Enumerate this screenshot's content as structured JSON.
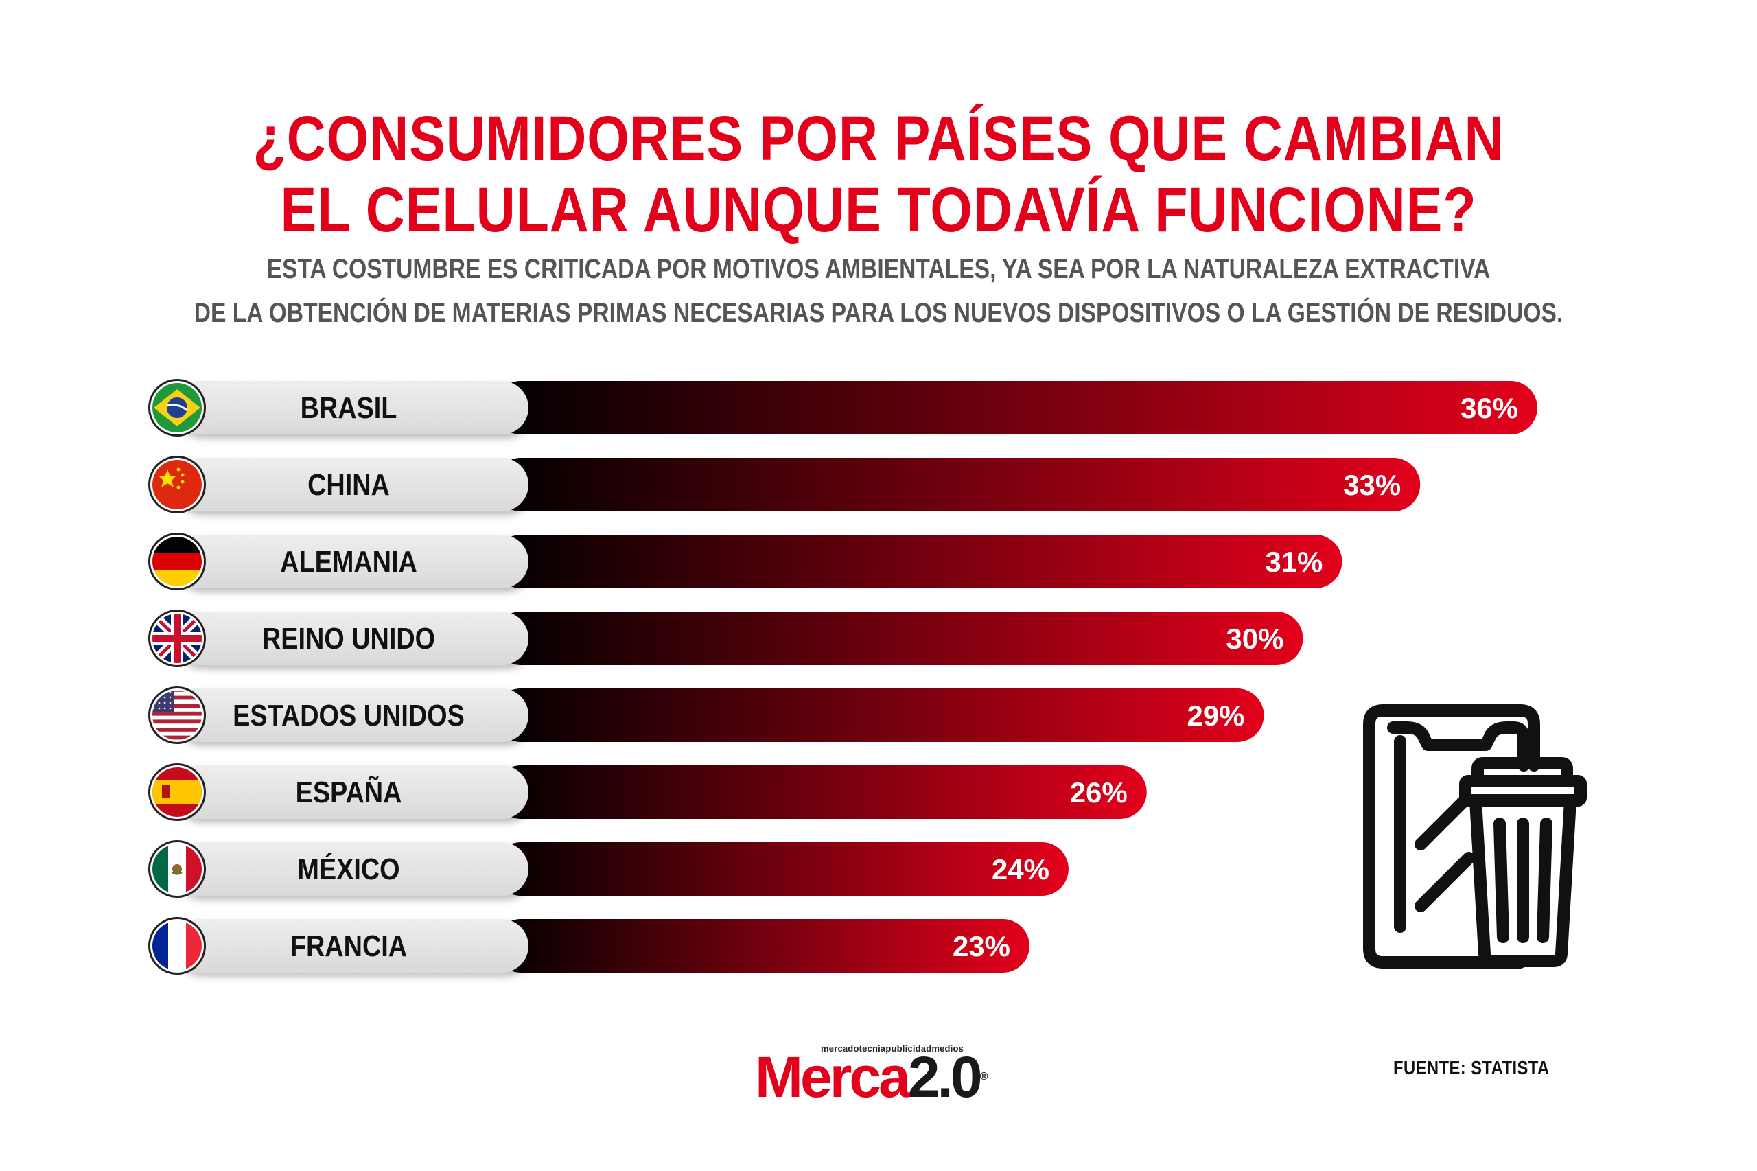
{
  "title": {
    "line1": "¿CONSUMIDORES POR PAÍSES QUE CAMBIAN",
    "line2": "EL CELULAR AUNQUE TODAVÍA FUNCIONE?"
  },
  "subtitle": {
    "line1": "ESTA COSTUMBRE ES CRITICADA POR MOTIVOS AMBIENTALES, YA SEA POR LA NATURALEZA EXTRACTIVA",
    "line2": "DE LA OBTENCIÓN DE MATERIAS PRIMAS NECESARIAS PARA LOS NUEVOS DISPOSITIVOS O LA GESTIÓN DE RESIDUOS."
  },
  "colors": {
    "accent": "#e3001b",
    "bar_start": "#000000",
    "bar_end": "#e3001b",
    "label_bg": "#e6e6e6"
  },
  "chart_data": {
    "type": "bar",
    "orientation": "horizontal",
    "unit": "%",
    "categories": [
      "BRASIL",
      "CHINA",
      "ALEMANIA",
      "REINO UNIDO",
      "ESTADOS UNIDOS",
      "ESPAÑA",
      "MÉXICO",
      "FRANCIA"
    ],
    "values": [
      36,
      33,
      31,
      30,
      29,
      26,
      24,
      23
    ],
    "value_labels": [
      "36%",
      "33%",
      "31%",
      "30%",
      "29%",
      "26%",
      "24%",
      "23%"
    ],
    "flags": [
      "brazil-flag-icon",
      "china-flag-icon",
      "germany-flag-icon",
      "uk-flag-icon",
      "usa-flag-icon",
      "spain-flag-icon",
      "mexico-flag-icon",
      "france-flag-icon"
    ]
  },
  "icon": "phone-trash-icon",
  "logo": {
    "tagline": "mercadotecniapublicidadmedios",
    "name_part1": "Merca",
    "name_part2": "2.0",
    "registered": "®"
  },
  "source": "FUENTE: STATISTA"
}
